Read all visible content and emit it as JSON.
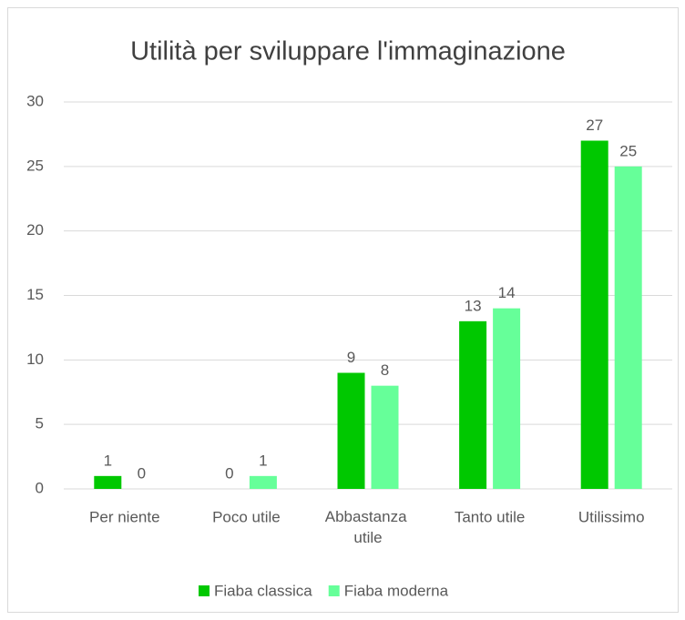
{
  "chart_data": {
    "type": "bar",
    "title": "Utilità per sviluppare l'immaginazione",
    "categories": [
      "Per niente",
      "Poco utile",
      "Abbastanza utile",
      "Tanto utile",
      "Utilissimo"
    ],
    "series": [
      {
        "name": "Fiaba classica",
        "color": "#00c800",
        "values": [
          1,
          0,
          9,
          13,
          27
        ]
      },
      {
        "name": "Fiaba moderna",
        "color": "#66ff99",
        "values": [
          0,
          1,
          8,
          14,
          25
        ]
      }
    ],
    "ylim": [
      0,
      30
    ],
    "yticks": [
      0,
      5,
      10,
      15,
      20,
      25,
      30
    ],
    "grid": true,
    "legend": "bottom"
  }
}
